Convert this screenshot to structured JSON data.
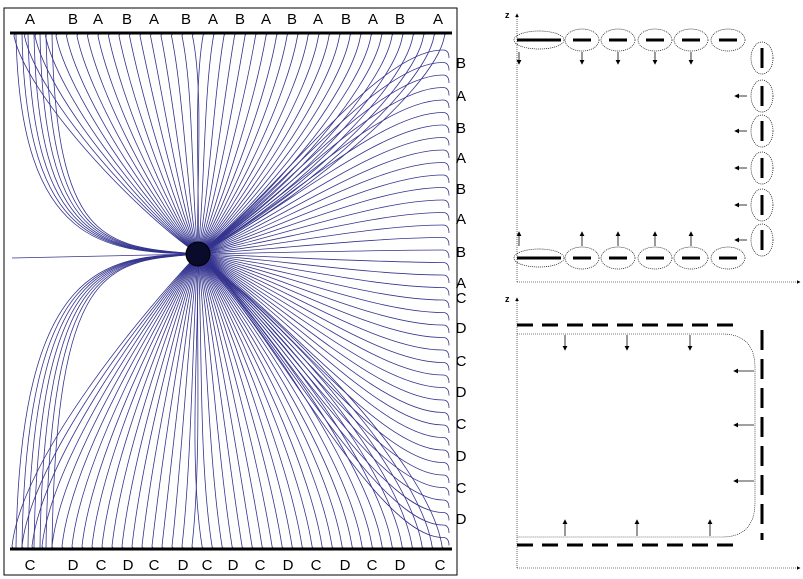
{
  "left_figure": {
    "top_labels": [
      "A",
      "B",
      "A",
      "B",
      "A",
      "B",
      "A",
      "B",
      "A",
      "B",
      "A",
      "B",
      "A",
      "B",
      "A"
    ],
    "bottom_labels": [
      "C",
      "D",
      "C",
      "D",
      "C",
      "D",
      "C",
      "D",
      "C",
      "D",
      "C",
      "D",
      "C",
      "D",
      "C"
    ],
    "right_labels": [
      "B",
      "A",
      "B",
      "A",
      "B",
      "A",
      "B",
      "A",
      "C",
      "D",
      "C",
      "D",
      "C",
      "D",
      "C",
      "D"
    ],
    "line_color": "#33338f",
    "center_color": "#0a0a2a"
  },
  "top_right_figure": {
    "axis_label": "z"
  },
  "bottom_right_figure": {
    "axis_label": "z"
  }
}
